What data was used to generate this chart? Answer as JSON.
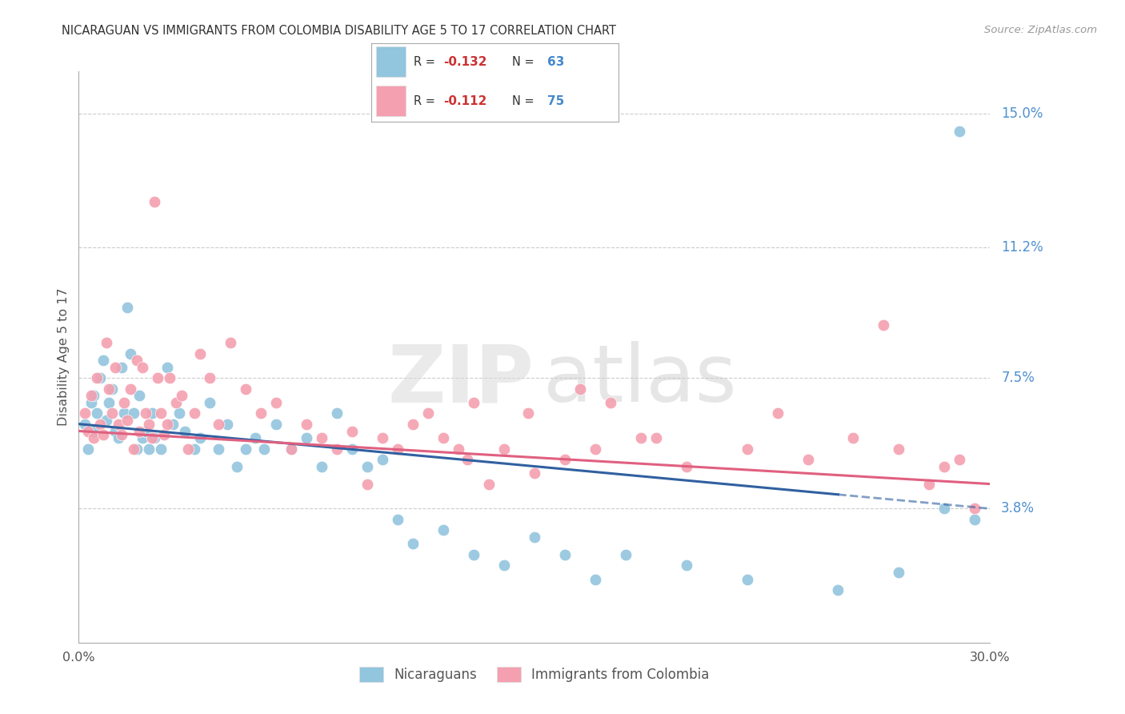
{
  "title": "NICARAGUAN VS IMMIGRANTS FROM COLOMBIA DISABILITY AGE 5 TO 17 CORRELATION CHART",
  "source": "Source: ZipAtlas.com",
  "ylabel": "Disability Age 5 to 17",
  "ytick_labels": [
    "3.8%",
    "7.5%",
    "11.2%",
    "15.0%"
  ],
  "ytick_values": [
    3.8,
    7.5,
    11.2,
    15.0
  ],
  "xmin": 0.0,
  "xmax": 30.0,
  "ymin": 0.0,
  "ymax": 16.2,
  "r_nicaraguan": -0.132,
  "n_nicaraguan": 63,
  "r_colombia": -0.112,
  "n_colombia": 75,
  "color_nicaraguan": "#92C5DE",
  "color_colombia": "#F4A0B0",
  "color_line_nicaraguan": "#3060A0",
  "color_line_colombia": "#E06080",
  "background_color": "#FFFFFF",
  "grid_color": "#CCCCCC",
  "nicaraguan_x": [
    0.2,
    0.3,
    0.4,
    0.5,
    0.5,
    0.6,
    0.7,
    0.8,
    0.9,
    1.0,
    1.1,
    1.2,
    1.3,
    1.4,
    1.5,
    1.6,
    1.7,
    1.8,
    1.9,
    2.0,
    2.1,
    2.2,
    2.3,
    2.4,
    2.5,
    2.7,
    2.9,
    3.1,
    3.3,
    3.5,
    3.8,
    4.0,
    4.3,
    4.6,
    4.9,
    5.2,
    5.5,
    5.8,
    6.1,
    6.5,
    7.0,
    7.5,
    8.0,
    8.5,
    9.0,
    9.5,
    10.0,
    10.5,
    11.0,
    12.0,
    13.0,
    14.0,
    15.0,
    16.0,
    17.0,
    18.0,
    20.0,
    22.0,
    25.0,
    27.0,
    28.5,
    29.0,
    29.5
  ],
  "nicaraguan_y": [
    6.2,
    5.5,
    6.8,
    7.0,
    6.0,
    6.5,
    7.5,
    8.0,
    6.3,
    6.8,
    7.2,
    6.0,
    5.8,
    7.8,
    6.5,
    9.5,
    8.2,
    6.5,
    5.5,
    7.0,
    5.8,
    6.0,
    5.5,
    6.5,
    5.8,
    5.5,
    7.8,
    6.2,
    6.5,
    6.0,
    5.5,
    5.8,
    6.8,
    5.5,
    6.2,
    5.0,
    5.5,
    5.8,
    5.5,
    6.2,
    5.5,
    5.8,
    5.0,
    6.5,
    5.5,
    5.0,
    5.2,
    3.5,
    2.8,
    3.2,
    2.5,
    2.2,
    3.0,
    2.5,
    1.8,
    2.5,
    2.2,
    1.8,
    1.5,
    2.0,
    3.8,
    14.5,
    3.5
  ],
  "colombia_x": [
    0.2,
    0.3,
    0.4,
    0.5,
    0.6,
    0.7,
    0.8,
    0.9,
    1.0,
    1.1,
    1.2,
    1.3,
    1.4,
    1.5,
    1.6,
    1.7,
    1.8,
    1.9,
    2.0,
    2.1,
    2.2,
    2.3,
    2.4,
    2.5,
    2.6,
    2.7,
    2.8,
    2.9,
    3.0,
    3.2,
    3.4,
    3.6,
    3.8,
    4.0,
    4.3,
    4.6,
    5.0,
    5.5,
    6.0,
    6.5,
    7.0,
    7.5,
    8.0,
    8.5,
    9.0,
    9.5,
    10.0,
    10.5,
    11.0,
    11.5,
    12.0,
    12.5,
    13.0,
    13.5,
    14.0,
    15.0,
    16.0,
    17.0,
    18.5,
    20.0,
    22.0,
    24.0,
    25.5,
    27.0,
    28.0,
    28.5,
    29.0,
    29.5,
    26.5,
    23.0,
    19.0,
    17.5,
    16.5,
    14.8,
    12.8
  ],
  "colombia_y": [
    6.5,
    6.0,
    7.0,
    5.8,
    7.5,
    6.2,
    5.9,
    8.5,
    7.2,
    6.5,
    7.8,
    6.2,
    5.9,
    6.8,
    6.3,
    7.2,
    5.5,
    8.0,
    6.0,
    7.8,
    6.5,
    6.2,
    5.8,
    12.5,
    7.5,
    6.5,
    5.9,
    6.2,
    7.5,
    6.8,
    7.0,
    5.5,
    6.5,
    8.2,
    7.5,
    6.2,
    8.5,
    7.2,
    6.5,
    6.8,
    5.5,
    6.2,
    5.8,
    5.5,
    6.0,
    4.5,
    5.8,
    5.5,
    6.2,
    6.5,
    5.8,
    5.5,
    6.8,
    4.5,
    5.5,
    4.8,
    5.2,
    5.5,
    5.8,
    5.0,
    5.5,
    5.2,
    5.8,
    5.5,
    4.5,
    5.0,
    5.2,
    3.8,
    9.0,
    6.5,
    5.8,
    6.8,
    7.2,
    6.5,
    5.2
  ]
}
